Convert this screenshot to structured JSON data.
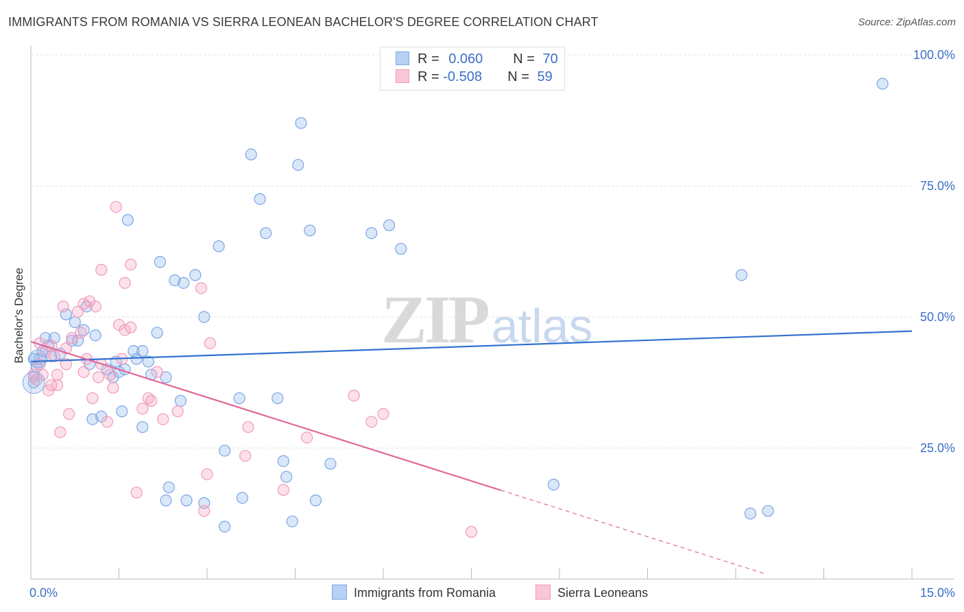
{
  "header": {
    "title": "IMMIGRANTS FROM ROMANIA VS SIERRA LEONEAN BACHELOR'S DEGREE CORRELATION CHART",
    "source": "Source: ZipAtlas.com"
  },
  "watermark": {
    "zip": "ZIP",
    "atlas": "atlas"
  },
  "stats": [
    {
      "r_label": "R = ",
      "r_value": "0.060",
      "n_label": "N = ",
      "n_value": "70",
      "color": "#7aa6e6"
    },
    {
      "r_label": "R = ",
      "r_value": "-0.508",
      "n_label": "N = ",
      "n_value": "59",
      "color": "#f09ab8"
    }
  ],
  "legend": [
    {
      "label": "Immigrants from Romania",
      "color": "#7aa6e6"
    },
    {
      "label": "Sierra Leoneans",
      "color": "#f09ab8"
    }
  ],
  "chart_data": {
    "type": "scatter",
    "title": "IMMIGRANTS FROM ROMANIA VS SIERRA LEONEAN BACHELOR'S DEGREE CORRELATION CHART",
    "xlabel": "",
    "ylabel": "Bachelor's Degree",
    "xlim": [
      0,
      15
    ],
    "ylim": [
      0,
      100
    ],
    "x_tick_labels": [
      "0.0%",
      "15.0%"
    ],
    "y_ticks": [
      25,
      50,
      75,
      100
    ],
    "y_tick_labels": [
      "25.0%",
      "50.0%",
      "75.0%",
      "100.0%"
    ],
    "grid": true,
    "legend_position": "bottom",
    "series": [
      {
        "name": "Immigrants from Romania",
        "color": "#7aa6e6",
        "line_color": "#2f6fcf",
        "trend": {
          "x": [
            0,
            15
          ],
          "y": [
            41.5,
            47.3
          ],
          "dash_from": null
        },
        "points": [
          [
            0.05,
            37.5
          ],
          [
            0.1,
            40.5
          ],
          [
            0.15,
            42
          ],
          [
            0.2,
            43.5
          ],
          [
            0.25,
            46
          ],
          [
            0.3,
            44.5
          ],
          [
            0.35,
            42.5
          ],
          [
            0.4,
            46
          ],
          [
            0.5,
            43
          ],
          [
            0.6,
            50.5
          ],
          [
            0.7,
            45.5
          ],
          [
            0.75,
            49
          ],
          [
            0.8,
            45.5
          ],
          [
            0.9,
            47.5
          ],
          [
            0.95,
            52
          ],
          [
            1.0,
            41
          ],
          [
            1.1,
            46.5
          ],
          [
            1.05,
            30.5
          ],
          [
            1.2,
            31
          ],
          [
            1.3,
            40
          ],
          [
            1.4,
            38.5
          ],
          [
            1.45,
            41.5
          ],
          [
            1.5,
            39.5
          ],
          [
            1.55,
            32
          ],
          [
            1.6,
            40
          ],
          [
            1.65,
            68.5
          ],
          [
            1.75,
            43.5
          ],
          [
            1.8,
            42
          ],
          [
            1.9,
            29
          ],
          [
            1.9,
            43.5
          ],
          [
            2.0,
            41.5
          ],
          [
            2.05,
            39
          ],
          [
            2.15,
            47
          ],
          [
            2.2,
            60.5
          ],
          [
            2.3,
            38.5
          ],
          [
            2.35,
            17.5
          ],
          [
            2.3,
            15
          ],
          [
            2.45,
            57
          ],
          [
            2.6,
            56.5
          ],
          [
            2.55,
            34
          ],
          [
            2.65,
            15
          ],
          [
            2.8,
            58
          ],
          [
            2.95,
            14.5
          ],
          [
            2.95,
            50
          ],
          [
            3.2,
            63.5
          ],
          [
            3.3,
            10
          ],
          [
            3.3,
            24.5
          ],
          [
            3.55,
            34.5
          ],
          [
            3.6,
            15.5
          ],
          [
            3.75,
            81
          ],
          [
            3.9,
            72.5
          ],
          [
            4.0,
            66
          ],
          [
            4.2,
            34.5
          ],
          [
            4.3,
            22.5
          ],
          [
            4.35,
            19.5
          ],
          [
            4.45,
            11
          ],
          [
            4.55,
            79
          ],
          [
            4.6,
            87
          ],
          [
            4.75,
            66.5
          ],
          [
            4.85,
            15
          ],
          [
            5.1,
            22
          ],
          [
            5.8,
            66
          ],
          [
            6.1,
            67.5
          ],
          [
            6.3,
            63
          ],
          [
            8.9,
            18
          ],
          [
            12.1,
            58
          ],
          [
            12.25,
            12.5
          ],
          [
            12.55,
            13
          ],
          [
            14.5,
            94.5
          ],
          [
            0.05,
            42
          ]
        ]
      },
      {
        "name": "Sierra Leoneans",
        "color": "#f09ab8",
        "line_color": "#e0679a",
        "trend": {
          "x": [
            0,
            12.5
          ],
          "y": [
            45.3,
            1
          ],
          "dash_from": 8.0
        },
        "points": [
          [
            0.05,
            38.5
          ],
          [
            0.1,
            38
          ],
          [
            0.15,
            41
          ],
          [
            0.2,
            39
          ],
          [
            0.25,
            43.5
          ],
          [
            0.3,
            36
          ],
          [
            0.35,
            44.5
          ],
          [
            0.4,
            42.5
          ],
          [
            0.45,
            37
          ],
          [
            0.5,
            28
          ],
          [
            0.55,
            52
          ],
          [
            0.6,
            41
          ],
          [
            0.65,
            31.5
          ],
          [
            0.7,
            46
          ],
          [
            0.8,
            51
          ],
          [
            0.85,
            47
          ],
          [
            0.9,
            39.5
          ],
          [
            0.9,
            52.5
          ],
          [
            0.95,
            42
          ],
          [
            1.0,
            53
          ],
          [
            1.05,
            34.5
          ],
          [
            1.1,
            52
          ],
          [
            1.15,
            38.5
          ],
          [
            1.2,
            59
          ],
          [
            1.3,
            30
          ],
          [
            1.35,
            39
          ],
          [
            1.4,
            36.5
          ],
          [
            1.45,
            71
          ],
          [
            1.5,
            48.5
          ],
          [
            1.55,
            42
          ],
          [
            1.6,
            47.5
          ],
          [
            1.6,
            56.5
          ],
          [
            1.7,
            48
          ],
          [
            1.7,
            60
          ],
          [
            1.8,
            16.5
          ],
          [
            1.9,
            32.5
          ],
          [
            2.0,
            34.5
          ],
          [
            2.05,
            34
          ],
          [
            2.15,
            39.5
          ],
          [
            2.25,
            30.5
          ],
          [
            2.5,
            32
          ],
          [
            2.9,
            55.5
          ],
          [
            2.95,
            13
          ],
          [
            3.0,
            20
          ],
          [
            3.05,
            45
          ],
          [
            3.65,
            23.5
          ],
          [
            3.7,
            29
          ],
          [
            4.3,
            17
          ],
          [
            4.7,
            27
          ],
          [
            5.5,
            35
          ],
          [
            5.8,
            30
          ],
          [
            6.0,
            31.5
          ],
          [
            7.5,
            9
          ],
          [
            0.05,
            39
          ],
          [
            0.15,
            45
          ],
          [
            0.35,
            37
          ],
          [
            0.6,
            44
          ],
          [
            1.2,
            41
          ],
          [
            0.45,
            39
          ]
        ]
      }
    ]
  }
}
